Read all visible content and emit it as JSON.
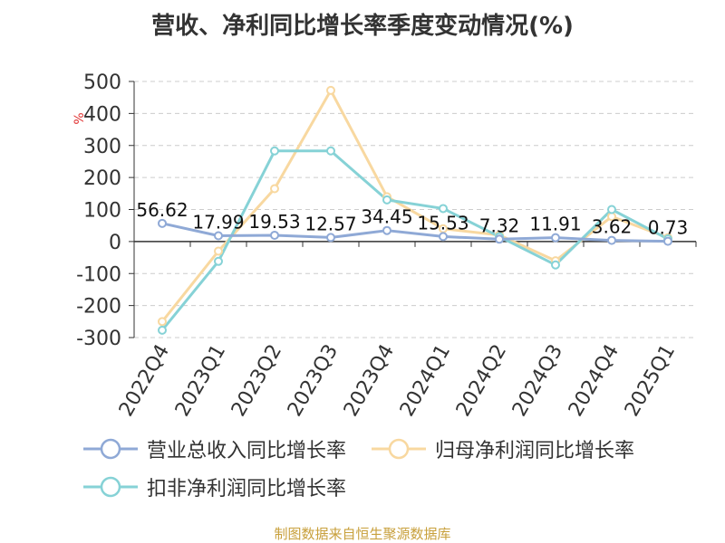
{
  "title": "营收、净利同比增长率季度变动情况(%)",
  "source": "制图数据来自恒生聚源数据库",
  "chart_data": {
    "type": "line",
    "categories": [
      "2022Q4",
      "2023Q1",
      "2023Q2",
      "2023Q3",
      "2023Q4",
      "2024Q1",
      "2024Q2",
      "2024Q3",
      "2024Q4",
      "2025Q1"
    ],
    "ylabel": "%",
    "ylim": [
      -300,
      500
    ],
    "yticks": [
      500,
      400,
      300,
      200,
      100,
      0,
      -100,
      -200,
      -300
    ],
    "grid": true,
    "legend_position": "bottom",
    "series": [
      {
        "name": "营业总收入同比增长率",
        "color": "#8fa9d6",
        "values": [
          56.62,
          17.99,
          19.53,
          12.57,
          34.45,
          15.53,
          7.32,
          11.91,
          3.62,
          0.73
        ],
        "labels": [
          "56.62",
          "17.99",
          "19.53",
          "12.57",
          "34.45",
          "15.53",
          "7.32",
          "11.91",
          "3.62",
          "0.73"
        ]
      },
      {
        "name": "归母净利润同比增长率",
        "color": "#f8d8a0",
        "values": [
          -250,
          -30,
          165,
          472,
          140,
          40,
          20,
          -60,
          78,
          12
        ]
      },
      {
        "name": "扣非净利润同比增长率",
        "color": "#86d2d6",
        "values": [
          -277,
          -62,
          283,
          283,
          130,
          103,
          15,
          -73,
          100,
          8
        ]
      }
    ]
  }
}
